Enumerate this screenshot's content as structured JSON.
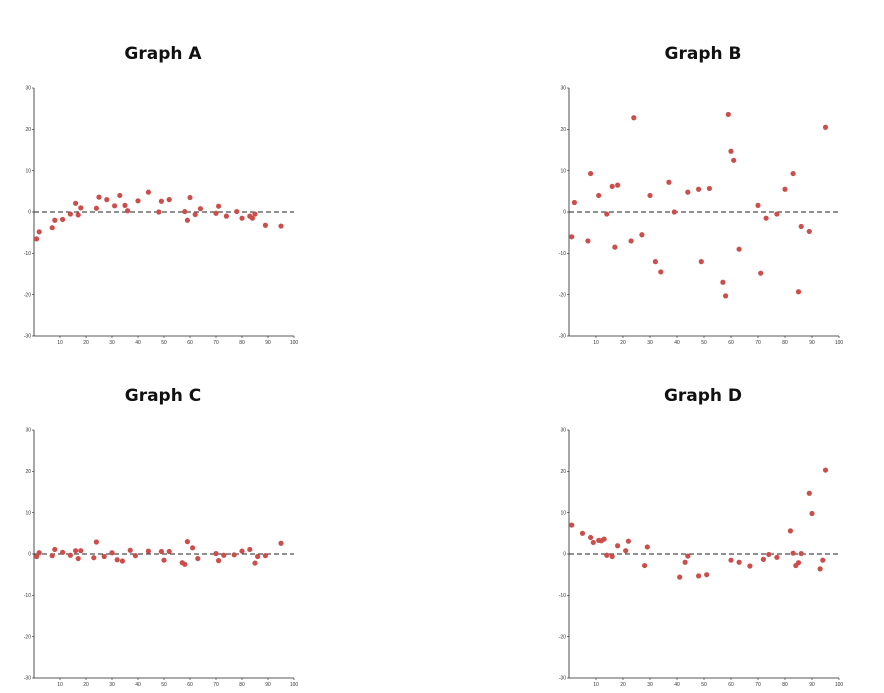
{
  "colors": {
    "point": "#cc4e4b",
    "axis": "#222222",
    "zero_line": "#222222"
  },
  "chart_data": [
    {
      "type": "scatter",
      "title": "Graph A",
      "xlim": [
        0,
        100
      ],
      "ylim": [
        -30,
        30
      ],
      "x_ticks": [
        10,
        20,
        30,
        40,
        50,
        60,
        70,
        80,
        90,
        100
      ],
      "y_ticks": [
        30,
        20,
        10,
        0,
        -10,
        -20,
        -30
      ],
      "reference_line": {
        "y": 0,
        "style": "dashed"
      },
      "points": [
        [
          1,
          -6.5
        ],
        [
          2,
          -4.8
        ],
        [
          7,
          -3.8
        ],
        [
          8,
          -2
        ],
        [
          11,
          -1.8
        ],
        [
          14,
          -0.5
        ],
        [
          16,
          2.1
        ],
        [
          17,
          -0.7
        ],
        [
          18,
          1
        ],
        [
          24,
          0.9
        ],
        [
          25,
          3.6
        ],
        [
          28,
          3
        ],
        [
          31,
          1.5
        ],
        [
          33,
          4
        ],
        [
          35,
          1.6
        ],
        [
          36,
          0.3
        ],
        [
          40,
          2.7
        ],
        [
          44,
          4.8
        ],
        [
          48,
          0
        ],
        [
          49,
          2.6
        ],
        [
          52,
          3
        ],
        [
          58,
          0.1
        ],
        [
          59,
          -2
        ],
        [
          60,
          3.5
        ],
        [
          62,
          -0.6
        ],
        [
          64,
          0.8
        ],
        [
          70,
          -0.3
        ],
        [
          71,
          1.4
        ],
        [
          74,
          -1
        ],
        [
          78,
          0.1
        ],
        [
          80,
          -1.5
        ],
        [
          83,
          -1
        ],
        [
          84,
          -1.5
        ],
        [
          85,
          -0.5
        ],
        [
          89,
          -3.2
        ],
        [
          95,
          -3.4
        ]
      ]
    },
    {
      "type": "scatter",
      "title": "Graph B",
      "xlim": [
        0,
        100
      ],
      "ylim": [
        -30,
        30
      ],
      "x_ticks": [
        10,
        20,
        30,
        40,
        50,
        60,
        70,
        80,
        90,
        100
      ],
      "y_ticks": [
        30,
        20,
        10,
        0,
        -10,
        -20,
        -30
      ],
      "reference_line": {
        "y": 0,
        "style": "dashed"
      },
      "points": [
        [
          1,
          -6
        ],
        [
          2,
          2.3
        ],
        [
          7,
          -7
        ],
        [
          8,
          9.3
        ],
        [
          11,
          4
        ],
        [
          14,
          -0.5
        ],
        [
          16,
          6.2
        ],
        [
          17,
          -8.5
        ],
        [
          18,
          6.5
        ],
        [
          23,
          -7
        ],
        [
          24,
          22.8
        ],
        [
          27,
          -5.5
        ],
        [
          30,
          4
        ],
        [
          32,
          -12
        ],
        [
          34,
          -14.5
        ],
        [
          37,
          7.2
        ],
        [
          39,
          0
        ],
        [
          44,
          4.8
        ],
        [
          48,
          5.5
        ],
        [
          49,
          -12
        ],
        [
          52,
          5.7
        ],
        [
          57,
          -17
        ],
        [
          58,
          -20.3
        ],
        [
          59,
          23.6
        ],
        [
          60,
          14.7
        ],
        [
          61,
          12.5
        ],
        [
          63,
          -9
        ],
        [
          70,
          1.6
        ],
        [
          71,
          -14.8
        ],
        [
          73,
          -1.5
        ],
        [
          77,
          -0.5
        ],
        [
          80,
          5.5
        ],
        [
          83,
          9.3
        ],
        [
          85,
          -19.3
        ],
        [
          86,
          -3.5
        ],
        [
          89,
          -4.7
        ],
        [
          95,
          20.5
        ]
      ]
    },
    {
      "type": "scatter",
      "title": "Graph C",
      "xlim": [
        0,
        100
      ],
      "ylim": [
        -30,
        30
      ],
      "x_ticks": [
        10,
        20,
        30,
        40,
        50,
        60,
        70,
        80,
        90,
        100
      ],
      "y_ticks": [
        30,
        20,
        10,
        0,
        -10,
        -20,
        -30
      ],
      "reference_line": {
        "y": 0,
        "style": "dashed"
      },
      "points": [
        [
          1,
          -0.6
        ],
        [
          2,
          0.3
        ],
        [
          7,
          -0.4
        ],
        [
          8,
          1.1
        ],
        [
          11,
          0.4
        ],
        [
          14,
          -0.3
        ],
        [
          16,
          0.8
        ],
        [
          17,
          -1.1
        ],
        [
          18,
          0.8
        ],
        [
          23,
          -0.9
        ],
        [
          24,
          2.9
        ],
        [
          27,
          -0.6
        ],
        [
          30,
          0.3
        ],
        [
          32,
          -1.4
        ],
        [
          34,
          -1.7
        ],
        [
          37,
          0.9
        ],
        [
          39,
          -0.4
        ],
        [
          44,
          0.7
        ],
        [
          49,
          0.6
        ],
        [
          50,
          -1.5
        ],
        [
          52,
          0.6
        ],
        [
          57,
          -2.1
        ],
        [
          58,
          -2.5
        ],
        [
          59,
          3
        ],
        [
          61,
          1.5
        ],
        [
          63,
          -1.1
        ],
        [
          70,
          0.1
        ],
        [
          71,
          -1.6
        ],
        [
          73,
          -0.3
        ],
        [
          77,
          -0.2
        ],
        [
          80,
          0.7
        ],
        [
          83,
          1.1
        ],
        [
          85,
          -2.2
        ],
        [
          86,
          -0.6
        ],
        [
          89,
          -0.4
        ],
        [
          95,
          2.6
        ]
      ]
    },
    {
      "type": "scatter",
      "title": "Graph D",
      "xlim": [
        0,
        100
      ],
      "ylim": [
        -30,
        30
      ],
      "x_ticks": [
        10,
        20,
        30,
        40,
        50,
        60,
        70,
        80,
        90,
        100
      ],
      "y_ticks": [
        30,
        20,
        10,
        0,
        -10,
        -20,
        -30
      ],
      "reference_line": {
        "y": 0,
        "style": "dashed"
      },
      "points": [
        [
          1,
          7
        ],
        [
          5,
          5
        ],
        [
          8,
          4
        ],
        [
          9,
          2.8
        ],
        [
          11,
          3.3
        ],
        [
          12,
          3.2
        ],
        [
          13,
          3.6
        ],
        [
          14,
          -0.3
        ],
        [
          16,
          -0.6
        ],
        [
          18,
          2
        ],
        [
          21,
          0.8
        ],
        [
          22,
          3.1
        ],
        [
          28,
          -2.8
        ],
        [
          29,
          1.7
        ],
        [
          41,
          -5.6
        ],
        [
          43,
          -2
        ],
        [
          44,
          -0.5
        ],
        [
          48,
          -5.3
        ],
        [
          51,
          -5
        ],
        [
          60,
          -1.5
        ],
        [
          63,
          -2
        ],
        [
          67,
          -2.9
        ],
        [
          72,
          -1.3
        ],
        [
          74,
          -0.1
        ],
        [
          77,
          -0.8
        ],
        [
          82,
          5.6
        ],
        [
          83,
          0.2
        ],
        [
          84,
          -2.8
        ],
        [
          85,
          -2.1
        ],
        [
          86,
          0.1
        ],
        [
          89,
          14.7
        ],
        [
          90,
          9.8
        ],
        [
          93,
          -3.6
        ],
        [
          94,
          -1.5
        ],
        [
          95,
          20.3
        ]
      ]
    }
  ]
}
